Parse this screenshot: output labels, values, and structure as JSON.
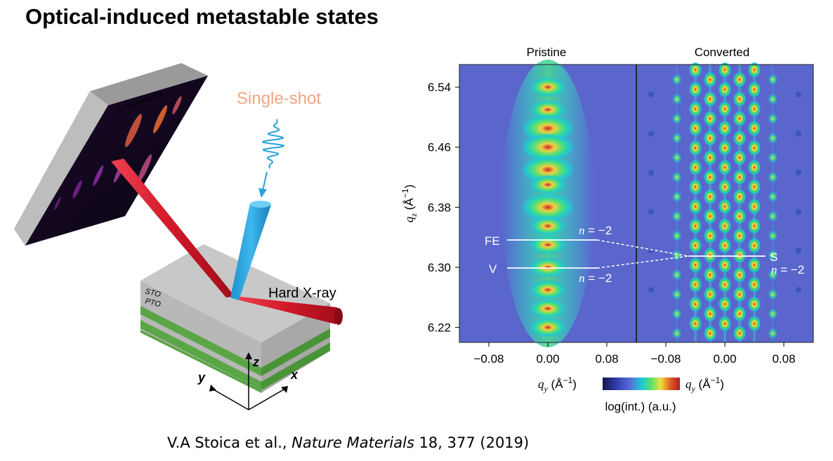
{
  "slide": {
    "title": "Optical-induced metastable states",
    "citation": {
      "authors": "V.A Stoica et al., ",
      "journal": "Nature Materials",
      "rest": " 18, 377 (2019)"
    }
  },
  "schematic": {
    "detector_label": "X-ray detector",
    "pump_label": "Single-shot",
    "probe_label": "Hard X-ray",
    "layer_top": "STO",
    "layer_second": "PTO",
    "axes": {
      "x": "x",
      "y": "y",
      "z": "z"
    },
    "colors": {
      "pump": "#2aa1dc",
      "probe": "#d81e2c",
      "pto_layer": "#5aa646",
      "sto_layer": "#b8b8b8",
      "pump_label": "#f4a582"
    }
  },
  "figure": {
    "panels": [
      "Pristine",
      "Converted"
    ],
    "y_axis_label": "q",
    "y_axis_sub": "z",
    "y_axis_unit": " (Å",
    "x_axis_label": "q",
    "x_axis_sub": "y",
    "x_axis_unit": " (Å",
    "unit_exp": "−1",
    "unit_close": ")",
    "y_ticks": [
      "6.54",
      "6.46",
      "6.38",
      "6.30",
      "6.22"
    ],
    "x_ticks_left": [
      "−0.08",
      "0.00",
      "0.08"
    ],
    "x_ticks_right": [
      "−0.08",
      "0.00",
      "0.08"
    ],
    "colorbar_label": "log(int.) (a.u.)",
    "annotations": {
      "fe": "FE",
      "v": "V",
      "s": "S",
      "n_label": "n",
      "n_value": " = −2"
    }
  },
  "chart_data": {
    "type": "heatmap",
    "panels": [
      "Pristine",
      "Converted"
    ],
    "y_ticks": [
      6.54,
      6.46,
      6.38,
      6.3,
      6.22
    ],
    "x_ticks": [
      -0.08,
      0.0,
      0.08
    ],
    "ylim": [
      6.2,
      6.57
    ],
    "xlim": [
      -0.12,
      0.12
    ],
    "pristine_peak_qz": [
      6.54,
      6.51,
      6.485,
      6.46,
      6.43,
      6.41,
      6.38,
      6.355,
      6.33,
      6.3,
      6.27,
      6.245,
      6.22
    ],
    "converted_peak_qy": [
      -0.065,
      -0.04,
      -0.02,
      0.0,
      0.02,
      0.04,
      0.065
    ],
    "annotated_lines": [
      {
        "label": "FE",
        "qz": 6.335,
        "n": -2
      },
      {
        "label": "V",
        "qz": 6.297,
        "n": -2
      },
      {
        "label": "S",
        "qz": 6.31,
        "n": -2
      }
    ],
    "colorscale": [
      "#16164a",
      "#2f3fb0",
      "#5a6ad6",
      "#1ec8d8",
      "#50e070",
      "#f0e040",
      "#e05a20",
      "#b01a2a"
    ]
  }
}
